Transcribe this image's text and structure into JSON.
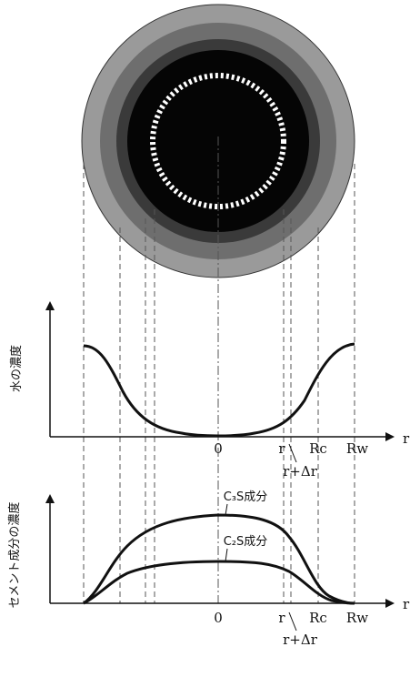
{
  "top_graph": {
    "y_label": "水の濃度",
    "x_axis": "r",
    "origin": "0",
    "r": "r",
    "r_plus_dr": "r+Δr",
    "rc": "Rc",
    "rw": "Rw"
  },
  "bottom_graph": {
    "y_label": "セメント成分の濃度",
    "x_axis": "r",
    "origin": "0",
    "r": "r",
    "r_plus_dr": "r+Δr",
    "rc": "Rc",
    "rw": "Rw",
    "c3s": "C₃S成分",
    "c2s": "C₂S成分"
  }
}
